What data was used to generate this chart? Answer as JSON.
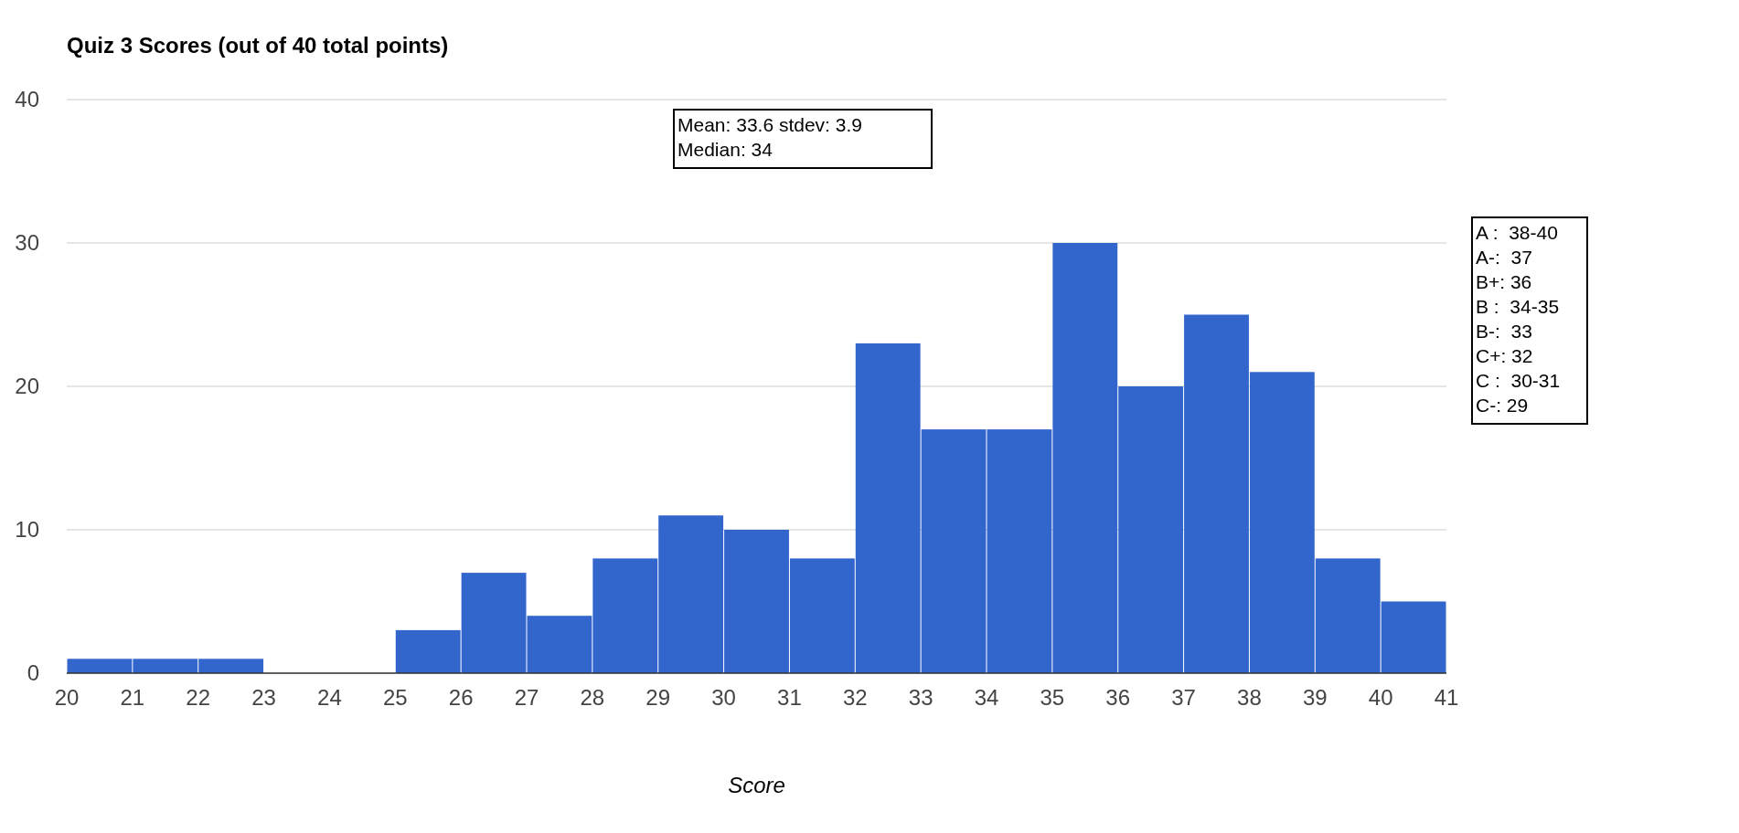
{
  "chart_data": {
    "type": "histogram",
    "title": "Quiz 3 Scores (out of 40 total points)",
    "xlabel": "Score",
    "bins": [
      20,
      21,
      22,
      23,
      24,
      25,
      26,
      27,
      28,
      29,
      30,
      31,
      32,
      33,
      34,
      35,
      36,
      37,
      38,
      39,
      40,
      41
    ],
    "values": [
      1,
      1,
      1,
      0,
      0,
      3,
      7,
      4,
      8,
      11,
      10,
      8,
      23,
      17,
      17,
      30,
      20,
      25,
      21,
      8,
      5
    ],
    "color": "#3366cc",
    "xlim": [
      20,
      41
    ],
    "xticks": [
      20,
      21,
      22,
      23,
      24,
      25,
      26,
      27,
      28,
      29,
      30,
      31,
      32,
      33,
      34,
      35,
      36,
      37,
      38,
      39,
      40,
      41
    ],
    "ylim": [
      0,
      40
    ],
    "yticks": [
      0,
      10,
      20,
      30,
      40
    ],
    "grid": "y",
    "annotations": [
      "Mean: 33.6 stdev: 3.9\nMedian: 34",
      "A :  38-40\nA-:  37\nB+: 36\nB :  34-35\nB-:  33\nC+: 32\nC :  30-31\nC-: 29"
    ]
  }
}
